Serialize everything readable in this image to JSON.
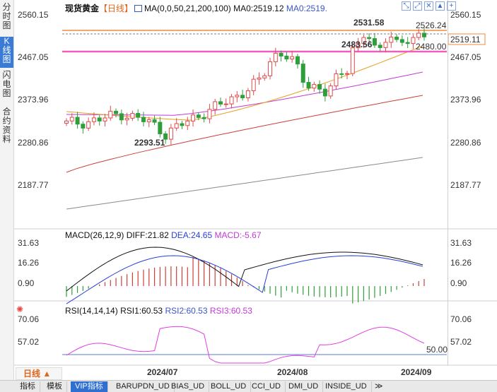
{
  "left_tabs": [
    "分时图",
    "K线图",
    "闪电图",
    "合约资料"
  ],
  "header": {
    "title": "现货黄金",
    "period": "【日线】",
    "ma_text": "MA(0,0,50,21,200,100)",
    "ma0_a": "MA0:2519.12",
    "ma0_b": "MA0:2519."
  },
  "toolbar_icons": [
    "expand-icon",
    "shrink-icon",
    "close-icon",
    "up-icon",
    "add-icon"
  ],
  "price_axis": [
    "2560.15",
    "2467.05",
    "2373.96",
    "2280.86",
    "2187.77"
  ],
  "current_price": "2519.11",
  "annotations": {
    "high_mark": "2531.58",
    "mid_mark": "2483.56",
    "low_mark": "2293.51",
    "resist_line": "2526.24",
    "support_line": "2480.00"
  },
  "macd": {
    "title": "MACD(26,12,9)",
    "diff": "DIFF:21.82",
    "dea": "DEA:24.65",
    "macd": "MACD:-5.67",
    "axis": [
      "31.63",
      "16.26",
      "0.90"
    ]
  },
  "rsi": {
    "title": "RSI(14,14,14)",
    "rsi1": "RSI1:60.53",
    "rsi2": "RSI2:60.53",
    "rsi3": "RSI3:60.53",
    "axis": [
      "70.06",
      "57.02"
    ],
    "level_label": "50.00"
  },
  "period_button": "日线",
  "x_dates": [
    "2024/07",
    "2024/08",
    "2024/09"
  ],
  "bottom_tabs": [
    "指标",
    "模板",
    "VIP指标",
    "BARUPDN_UD",
    "BIAS_UD",
    "BOLL_UD",
    "CCI_UD",
    "DMI_UD",
    "INSIDE_UD"
  ],
  "colors": {
    "up": "#e34a4a",
    "down": "#2f9e3a",
    "ma_orange": "#e8a020",
    "ma_purple": "#c23ad6",
    "ma_red": "#c8413a",
    "ma_gray": "#8a8a8a",
    "support_pink": "#ee5fbd",
    "resist_orange": "#f28a3a",
    "rsi_pink": "#e040e0",
    "tab_blue": "#2e6fd1"
  }
}
